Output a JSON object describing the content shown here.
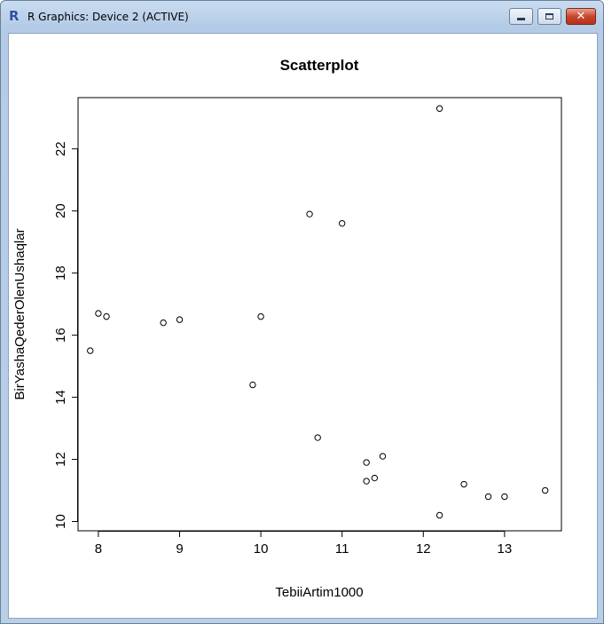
{
  "window": {
    "title": "R Graphics: Device 2 (ACTIVE)",
    "app_icon": "r-logo-icon",
    "logo_glyph": "R",
    "controls": {
      "minimize": "minimize-icon",
      "maximize": "maximize-icon",
      "close": "close-icon",
      "close_glyph": "✕"
    }
  },
  "chart_data": {
    "type": "scatter",
    "title": "Scatterplot",
    "xlabel": "TebiiArtim1000",
    "ylabel": "BirYashaQederOlenUshaqlar",
    "xlim": [
      7.75,
      13.7
    ],
    "ylim": [
      9.7,
      23.65
    ],
    "xticks": [
      8,
      9,
      10,
      11,
      12,
      13
    ],
    "yticks": [
      10,
      12,
      14,
      16,
      18,
      20,
      22
    ],
    "grid": false,
    "legend": "none",
    "point_style": "open-circle",
    "points": [
      {
        "x": 7.9,
        "y": 15.5
      },
      {
        "x": 8.0,
        "y": 16.7
      },
      {
        "x": 8.1,
        "y": 16.6
      },
      {
        "x": 8.8,
        "y": 16.4
      },
      {
        "x": 9.0,
        "y": 16.5
      },
      {
        "x": 9.9,
        "y": 14.4
      },
      {
        "x": 10.0,
        "y": 16.6
      },
      {
        "x": 10.6,
        "y": 19.9
      },
      {
        "x": 10.7,
        "y": 12.7
      },
      {
        "x": 11.0,
        "y": 19.6
      },
      {
        "x": 11.3,
        "y": 11.9
      },
      {
        "x": 11.3,
        "y": 11.3
      },
      {
        "x": 11.4,
        "y": 11.4
      },
      {
        "x": 11.5,
        "y": 12.1
      },
      {
        "x": 12.2,
        "y": 23.3
      },
      {
        "x": 12.2,
        "y": 10.2
      },
      {
        "x": 12.5,
        "y": 11.2
      },
      {
        "x": 12.8,
        "y": 10.8
      },
      {
        "x": 13.0,
        "y": 10.8
      },
      {
        "x": 13.5,
        "y": 11.0
      }
    ]
  }
}
